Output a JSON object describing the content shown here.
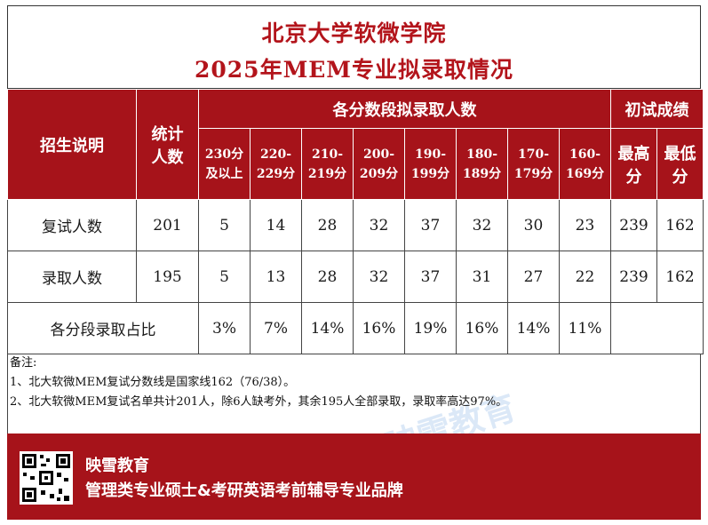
{
  "title": {
    "line1": "北京大学软微学院",
    "line2": "2025年MEM专业拟录取情况"
  },
  "table": {
    "h_enroll": "招生说明",
    "h_total_top": "统计",
    "h_total_bottom": "人数",
    "h_ranges_group": "各分数段拟录取人数",
    "h_prelim_group": "初试成绩",
    "ranges": [
      {
        "top": "230分",
        "bottom": "及以上"
      },
      {
        "top": "220-",
        "bottom": "229分"
      },
      {
        "top": "210-",
        "bottom": "219分"
      },
      {
        "top": "200-",
        "bottom": "209分"
      },
      {
        "top": "190-",
        "bottom": "199分"
      },
      {
        "top": "180-",
        "bottom": "189分"
      },
      {
        "top": "170-",
        "bottom": "179分"
      },
      {
        "top": "160-",
        "bottom": "169分"
      }
    ],
    "h_max_top": "最高",
    "h_max_bottom": "分",
    "h_min_top": "最低",
    "h_min_bottom": "分",
    "rows": [
      {
        "label": "复试人数",
        "total": "201",
        "cells": [
          "5",
          "14",
          "28",
          "32",
          "37",
          "32",
          "30",
          "23"
        ],
        "max": "239",
        "min": "162"
      },
      {
        "label": "录取人数",
        "total": "195",
        "cells": [
          "5",
          "13",
          "28",
          "32",
          "37",
          "31",
          "27",
          "22"
        ],
        "max": "239",
        "min": "162"
      }
    ],
    "ratio_label": "各分段录取占比",
    "ratio": [
      "3%",
      "7%",
      "14%",
      "16%",
      "19%",
      "16%",
      "14%",
      "11%"
    ]
  },
  "notes": {
    "heading": "备注:",
    "n1": "1、北大软微MEM复试分数线是国家线162（76/38）。",
    "n2": "2、北大软微MEM复试名单共计201人，除6人缺考外，其余195人全部录取，录取率高达97%。"
  },
  "footer": {
    "brand": "映雪教育",
    "slogan": "管理类专业硕士&考研英语考前辅导专业品牌"
  },
  "colors": {
    "accent": "#a6131a",
    "title_red": "#b3141b"
  },
  "icons": {
    "qr": "qr-code-icon"
  }
}
